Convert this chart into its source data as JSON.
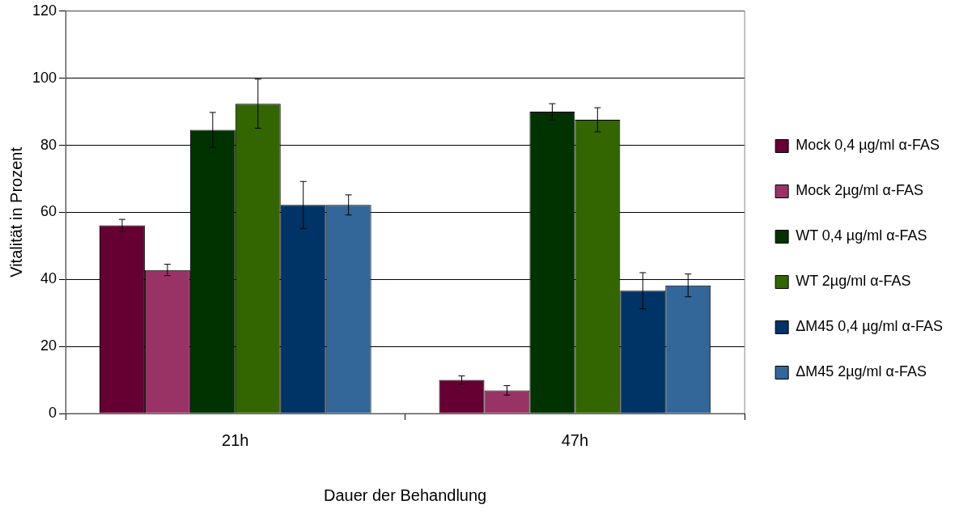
{
  "chart_data": {
    "type": "bar",
    "xlabel": "Dauer der Behandlung",
    "ylabel": "Vitalität in Prozent",
    "categories": [
      "21h",
      "47h"
    ],
    "series": [
      {
        "name": "Mock 0,4 µg/ml α-FAS",
        "color": "#660033",
        "values": [
          56.1,
          10.0
        ],
        "errors": [
          1.8,
          1.2
        ]
      },
      {
        "name": "Mock 2µg/ml α-FAS",
        "color": "#993366",
        "values": [
          42.8,
          6.9
        ],
        "errors": [
          1.7,
          1.4
        ]
      },
      {
        "name": "WT 0,4 µg/ml α-FAS",
        "color": "#003300",
        "values": [
          84.6,
          90.0
        ],
        "errors": [
          5.2,
          2.4
        ]
      },
      {
        "name": "WT 2µg/ml α-FAS",
        "color": "#336600",
        "values": [
          92.4,
          87.6
        ],
        "errors": [
          7.3,
          3.6
        ]
      },
      {
        "name": "ΔM45 0,4 µg/ml α-FAS",
        "color": "#003366",
        "values": [
          62.2,
          36.6
        ],
        "errors": [
          7.0,
          5.4
        ]
      },
      {
        "name": "ΔM45 2µg/ml α-FAS",
        "color": "#336699",
        "values": [
          62.2,
          38.2
        ],
        "errors": [
          3.0,
          3.4
        ]
      }
    ],
    "ylim": [
      0,
      120
    ],
    "yticks": [
      0,
      20,
      40,
      60,
      80,
      100,
      120
    ],
    "grid": "y",
    "legend": "right"
  }
}
